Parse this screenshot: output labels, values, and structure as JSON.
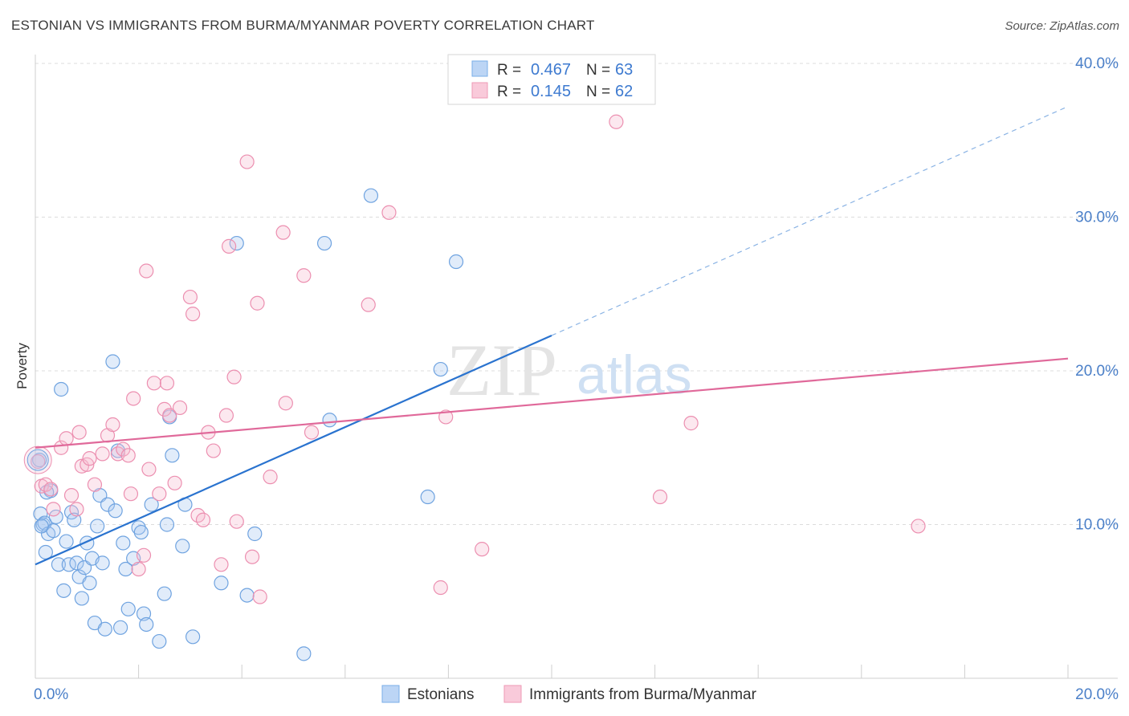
{
  "title": "ESTONIAN VS IMMIGRANTS FROM BURMA/MYANMAR POVERTY CORRELATION CHART",
  "source": "Source: ZipAtlas.com",
  "watermark": {
    "zip": "ZIP",
    "atlas": "atlas"
  },
  "chart_data": {
    "type": "scatter",
    "ylabel": "Poverty",
    "xlabel": "",
    "xlim": [
      0,
      20
    ],
    "ylim": [
      0,
      40
    ],
    "x_ticks": [
      0,
      2,
      4,
      6,
      8,
      10,
      12,
      14,
      16,
      18,
      20
    ],
    "x_tick_labels": [
      {
        "value": 0,
        "label": "0.0%"
      },
      {
        "value": 20,
        "label": "20.0%"
      }
    ],
    "y_tick_labels": [
      {
        "value": 10,
        "label": "10.0%"
      },
      {
        "value": 20,
        "label": "20.0%"
      },
      {
        "value": 30,
        "label": "30.0%"
      },
      {
        "value": 40,
        "label": "40.0%"
      }
    ],
    "grid": true,
    "legend_top": [
      {
        "r_label": "R =",
        "r_value": "0.467",
        "n_label": "N =",
        "n_value": "63",
        "color": "#7aaee8",
        "fill": "#bcd5f5"
      },
      {
        "r_label": "R =",
        "r_value": "0.145",
        "n_label": "N =",
        "n_value": "62",
        "color": "#ee9ab6",
        "fill": "#f9cada"
      }
    ],
    "legend_bottom": [
      "Estonians",
      "Immigrants from Burma/Myanmar"
    ],
    "series": [
      {
        "name": "Estonians",
        "color": "#6fa3e0",
        "fill": "rgba(170,200,240,0.35)",
        "trend_color": "#2a73cf",
        "trend": {
          "x0": 0,
          "y0": 7.4,
          "x1": 10,
          "y1": 22.3,
          "dashed_to_x": 20,
          "dashed_to_y": 37.2
        },
        "points": [
          [
            0.08,
            14.2
          ],
          [
            0.1,
            10.7
          ],
          [
            0.15,
            10.0
          ],
          [
            0.18,
            10.1
          ],
          [
            0.2,
            8.2
          ],
          [
            0.25,
            9.4
          ],
          [
            0.3,
            12.2
          ],
          [
            0.35,
            9.6
          ],
          [
            0.4,
            10.5
          ],
          [
            0.45,
            7.4
          ],
          [
            0.5,
            18.8
          ],
          [
            0.55,
            5.7
          ],
          [
            0.6,
            8.9
          ],
          [
            0.65,
            7.4
          ],
          [
            0.7,
            10.8
          ],
          [
            0.75,
            10.3
          ],
          [
            0.8,
            7.5
          ],
          [
            0.85,
            6.6
          ],
          [
            0.9,
            5.2
          ],
          [
            0.95,
            7.2
          ],
          [
            1.0,
            8.8
          ],
          [
            1.05,
            6.2
          ],
          [
            1.1,
            7.8
          ],
          [
            1.15,
            3.6
          ],
          [
            1.2,
            9.9
          ],
          [
            1.25,
            11.9
          ],
          [
            1.3,
            7.5
          ],
          [
            1.35,
            3.2
          ],
          [
            1.4,
            11.3
          ],
          [
            1.5,
            20.6
          ],
          [
            1.55,
            10.9
          ],
          [
            1.6,
            14.8
          ],
          [
            1.65,
            3.3
          ],
          [
            1.7,
            8.8
          ],
          [
            1.75,
            7.1
          ],
          [
            1.8,
            4.5
          ],
          [
            1.9,
            7.8
          ],
          [
            2.0,
            9.8
          ],
          [
            2.05,
            9.5
          ],
          [
            2.1,
            4.2
          ],
          [
            2.15,
            3.5
          ],
          [
            2.25,
            11.3
          ],
          [
            2.4,
            2.4
          ],
          [
            2.5,
            5.5
          ],
          [
            2.55,
            10.0
          ],
          [
            2.6,
            17.0
          ],
          [
            2.65,
            14.5
          ],
          [
            2.85,
            8.6
          ],
          [
            2.9,
            11.3
          ],
          [
            3.05,
            2.7
          ],
          [
            3.6,
            6.2
          ],
          [
            3.9,
            28.3
          ],
          [
            4.1,
            5.4
          ],
          [
            4.25,
            9.4
          ],
          [
            5.2,
            1.6
          ],
          [
            5.6,
            28.3
          ],
          [
            5.7,
            16.8
          ],
          [
            6.5,
            31.4
          ],
          [
            7.6,
            11.8
          ],
          [
            7.85,
            20.1
          ],
          [
            8.15,
            27.1
          ],
          [
            0.12,
            9.9
          ],
          [
            0.22,
            12.1
          ]
        ]
      },
      {
        "name": "Immigrants from Burma/Myanmar",
        "color": "#ec8fb0",
        "fill": "rgba(245,190,210,0.35)",
        "trend_color": "#e0699a",
        "trend": {
          "x0": 0,
          "y0": 15.0,
          "x1": 20,
          "y1": 20.8
        },
        "points": [
          [
            0.05,
            14.1
          ],
          [
            0.12,
            12.5
          ],
          [
            0.2,
            12.6
          ],
          [
            0.3,
            12.3
          ],
          [
            0.35,
            11.0
          ],
          [
            0.5,
            15.0
          ],
          [
            0.6,
            15.6
          ],
          [
            0.7,
            11.9
          ],
          [
            0.8,
            11.0
          ],
          [
            0.85,
            16.0
          ],
          [
            0.9,
            13.8
          ],
          [
            1.0,
            13.9
          ],
          [
            1.05,
            14.3
          ],
          [
            1.15,
            12.6
          ],
          [
            1.3,
            14.6
          ],
          [
            1.4,
            15.8
          ],
          [
            1.5,
            16.5
          ],
          [
            1.6,
            14.6
          ],
          [
            1.7,
            14.9
          ],
          [
            1.8,
            14.5
          ],
          [
            1.85,
            12.0
          ],
          [
            1.9,
            18.2
          ],
          [
            2.0,
            7.1
          ],
          [
            2.1,
            8.0
          ],
          [
            2.15,
            26.5
          ],
          [
            2.2,
            13.6
          ],
          [
            2.3,
            19.2
          ],
          [
            2.4,
            12.0
          ],
          [
            2.5,
            17.5
          ],
          [
            2.55,
            19.2
          ],
          [
            2.6,
            17.1
          ],
          [
            2.7,
            12.7
          ],
          [
            2.8,
            17.6
          ],
          [
            3.0,
            24.8
          ],
          [
            3.05,
            23.7
          ],
          [
            3.15,
            10.6
          ],
          [
            3.25,
            10.3
          ],
          [
            3.35,
            16.0
          ],
          [
            3.45,
            14.8
          ],
          [
            3.6,
            7.4
          ],
          [
            3.7,
            17.1
          ],
          [
            3.75,
            28.1
          ],
          [
            3.85,
            19.6
          ],
          [
            3.9,
            10.2
          ],
          [
            4.1,
            33.6
          ],
          [
            4.2,
            7.9
          ],
          [
            4.3,
            24.4
          ],
          [
            4.35,
            5.3
          ],
          [
            4.55,
            13.1
          ],
          [
            4.8,
            29.0
          ],
          [
            4.85,
            17.9
          ],
          [
            5.2,
            26.2
          ],
          [
            5.35,
            16.0
          ],
          [
            6.45,
            24.3
          ],
          [
            6.85,
            30.3
          ],
          [
            7.85,
            5.9
          ],
          [
            7.95,
            17.0
          ],
          [
            8.65,
            8.4
          ],
          [
            11.25,
            36.2
          ],
          [
            12.1,
            11.8
          ],
          [
            12.7,
            16.6
          ],
          [
            17.1,
            9.9
          ]
        ]
      }
    ]
  }
}
